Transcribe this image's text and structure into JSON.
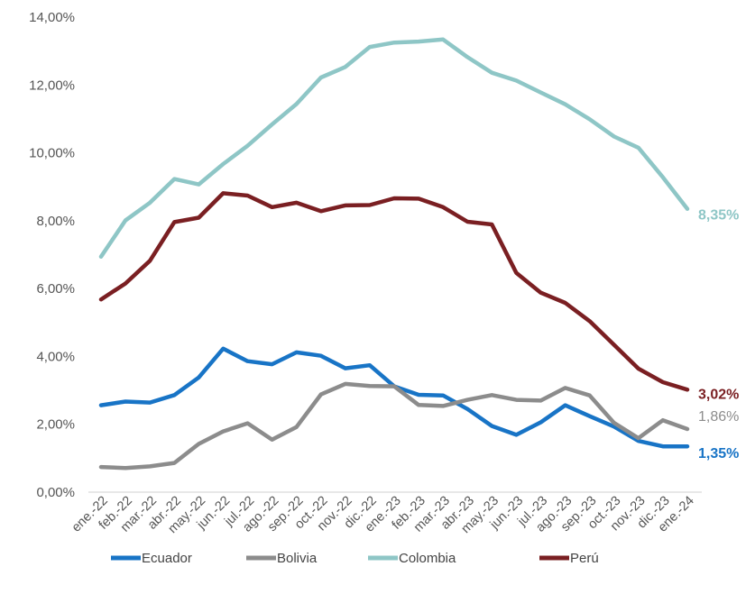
{
  "chart_data": {
    "type": "line",
    "title": "",
    "xlabel": "",
    "ylabel": "",
    "ylim": [
      0,
      14
    ],
    "y_ticks": [
      "0,00%",
      "2,00%",
      "4,00%",
      "6,00%",
      "8,00%",
      "10,00%",
      "12,00%",
      "14,00%"
    ],
    "grid": false,
    "legend_position": "bottom",
    "categories": [
      "ene.-22",
      "feb.-22",
      "mar.-22",
      "abr.-22",
      "may.-22",
      "jun.-22",
      "jul.-22",
      "ago.-22",
      "sep.-22",
      "oct.-22",
      "nov.-22",
      "dic.-22",
      "ene.-23",
      "feb.-23",
      "mar.-23",
      "abr.-23",
      "may.-23",
      "jun.-23",
      "jul.-23",
      "ago.-23",
      "sep.-23",
      "oct.-23",
      "nov.-23",
      "dic.-23",
      "ene.-24"
    ],
    "series": [
      {
        "name": "Ecuador",
        "color": "#1874c6",
        "values": [
          2.56,
          2.67,
          2.64,
          2.86,
          3.38,
          4.23,
          3.86,
          3.77,
          4.12,
          4.02,
          3.65,
          3.74,
          3.12,
          2.87,
          2.85,
          2.45,
          1.95,
          1.69,
          2.06,
          2.56,
          2.24,
          1.93,
          1.51,
          1.35,
          1.35
        ],
        "end_label": "1,35%"
      },
      {
        "name": "Bolivia",
        "color": "#8c8c8c",
        "values": [
          0.74,
          0.71,
          0.76,
          0.86,
          1.42,
          1.79,
          2.03,
          1.55,
          1.92,
          2.88,
          3.19,
          3.13,
          3.12,
          2.57,
          2.54,
          2.72,
          2.86,
          2.72,
          2.7,
          3.07,
          2.85,
          2.04,
          1.59,
          2.12,
          1.86
        ],
        "end_label": "1,86%"
      },
      {
        "name": "Colombia",
        "color": "#8ec6c6",
        "values": [
          6.94,
          8.01,
          8.53,
          9.23,
          9.07,
          9.67,
          10.21,
          10.84,
          11.44,
          12.22,
          12.53,
          13.12,
          13.25,
          13.28,
          13.34,
          12.82,
          12.36,
          12.13,
          11.78,
          11.43,
          10.99,
          10.48,
          10.15,
          9.28,
          8.35
        ],
        "end_label": "8,35%"
      },
      {
        "name": "Perú",
        "color": "#7a1f22",
        "values": [
          5.68,
          6.15,
          6.82,
          7.96,
          8.09,
          8.81,
          8.74,
          8.4,
          8.53,
          8.28,
          8.45,
          8.46,
          8.66,
          8.65,
          8.4,
          7.97,
          7.89,
          6.46,
          5.88,
          5.58,
          5.04,
          4.34,
          3.64,
          3.24,
          3.02
        ],
        "end_label": "3,02%"
      }
    ]
  }
}
